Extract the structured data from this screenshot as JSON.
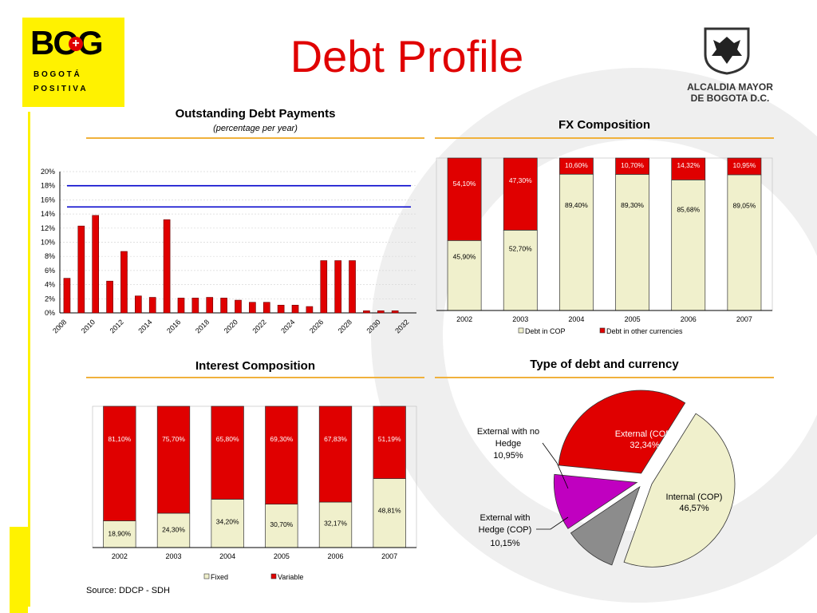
{
  "header": {
    "title": "Debt Profile",
    "logo_left_text": "BOG",
    "logo_left_sub1": "B O G O T Á",
    "logo_left_sub2": "P O S I T I V A",
    "logo_right_line1": "ALCALDIA MAYOR",
    "logo_right_line2": "DE BOGOTA D.C."
  },
  "colors": {
    "red": "#e00000",
    "cream": "#f0f0cc",
    "gold": "#f0b13c",
    "yellow": "#fff200",
    "blue": "#0000cc",
    "purple": "#c000c0",
    "gray": "#8c8c8c"
  },
  "footer": {
    "source": "Source: DDCP - SDH"
  },
  "chart_data": [
    {
      "type": "bar",
      "title": "Outstanding Debt Payments",
      "subtitle": "(percentage per year)",
      "x": [
        2008,
        2009,
        2010,
        2011,
        2012,
        2013,
        2014,
        2015,
        2016,
        2017,
        2018,
        2019,
        2020,
        2021,
        2022,
        2023,
        2024,
        2025,
        2026,
        2027,
        2028,
        2029,
        2030,
        2031,
        2032
      ],
      "xtick_labels": [
        "2008",
        "2010",
        "2012",
        "2014",
        "2016",
        "2018",
        "2020",
        "2022",
        "2024",
        "2026",
        "2028",
        "2030",
        "2032"
      ],
      "values": [
        4.9,
        12.3,
        13.8,
        4.5,
        8.7,
        2.4,
        2.2,
        13.2,
        2.1,
        2.1,
        2.2,
        2.1,
        1.8,
        1.5,
        1.5,
        1.1,
        1.1,
        0.9,
        7.4,
        7.4,
        7.4,
        0.3,
        0.3,
        0.3,
        0.0
      ],
      "ylim": [
        0,
        20
      ],
      "yticks": [
        "0%",
        "2%",
        "4%",
        "6%",
        "8%",
        "10%",
        "12%",
        "14%",
        "16%",
        "18%",
        "20%"
      ],
      "reference_lines": [
        18,
        15
      ],
      "grid": true
    },
    {
      "type": "bar",
      "stacked": true,
      "title": "FX Composition",
      "categories": [
        "2002",
        "2003",
        "2004",
        "2005",
        "2006",
        "2007"
      ],
      "series": [
        {
          "name": "Debt in COP",
          "values": [
            45.9,
            52.7,
            89.4,
            89.3,
            85.68,
            89.05
          ],
          "labels": [
            "45,90%",
            "52,70%",
            "89,40%",
            "89,30%",
            "85,68%",
            "89,05%"
          ]
        },
        {
          "name": "Debt in other currencies",
          "values": [
            54.1,
            47.3,
            10.6,
            10.7,
            14.32,
            10.95
          ],
          "labels": [
            "54,10%",
            "47,30%",
            "10,60%",
            "10,70%",
            "14,32%",
            "10,95%"
          ]
        }
      ],
      "ylim": [
        0,
        100
      ],
      "legend": "bottom"
    },
    {
      "type": "bar",
      "stacked": true,
      "title": "Interest Composition",
      "categories": [
        "2002",
        "2003",
        "2004",
        "2005",
        "2006",
        "2007"
      ],
      "series": [
        {
          "name": "Fixed",
          "values": [
            18.9,
            24.3,
            34.2,
            30.7,
            32.17,
            48.81
          ],
          "labels": [
            "18,90%",
            "24,30%",
            "34,20%",
            "30,70%",
            "32,17%",
            "48,81%"
          ]
        },
        {
          "name": "Variable",
          "values": [
            81.1,
            75.7,
            65.8,
            69.3,
            67.83,
            51.19
          ],
          "labels": [
            "81,10%",
            "75,70%",
            "65,80%",
            "69,30%",
            "67,83%",
            "51,19%"
          ]
        }
      ],
      "ylim": [
        0,
        100
      ],
      "legend": "bottom"
    },
    {
      "type": "pie",
      "title": "Type of debt and currency",
      "slices": [
        {
          "name": "Internal (COP)",
          "value": 46.57,
          "label": "46,57%",
          "color": "#f0f0cc"
        },
        {
          "name": "External with Hedge (COP)",
          "value": 10.15,
          "label": "10,15%",
          "color": "#8c8c8c"
        },
        {
          "name": "External with no Hedge",
          "value": 10.95,
          "label": "10,95%",
          "color": "#c000c0"
        },
        {
          "name": "External (COP)",
          "value": 32.34,
          "label": "32,34%",
          "color": "#e00000"
        }
      ]
    }
  ]
}
